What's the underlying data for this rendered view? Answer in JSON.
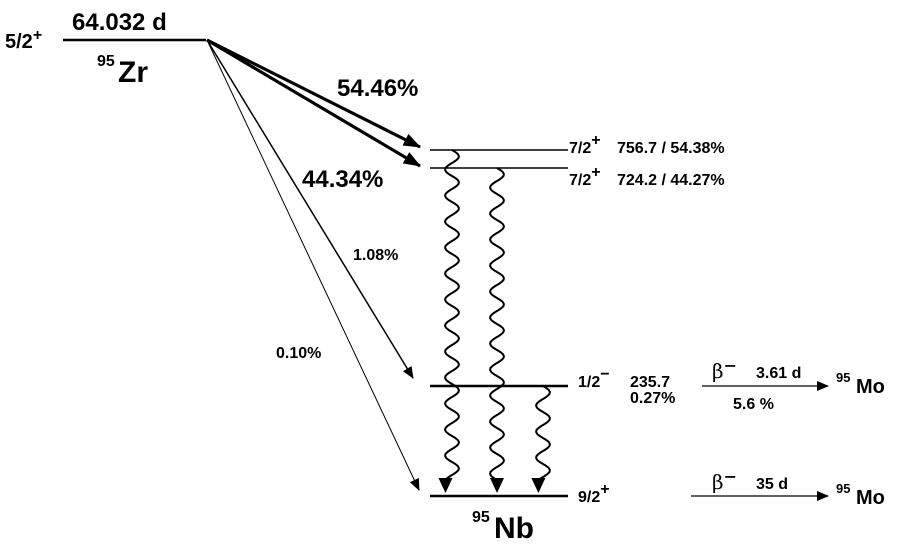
{
  "parent": {
    "spin": "5/2",
    "parity": "+",
    "half_life": "64.032 d",
    "mass_number": "95",
    "element": "Zr"
  },
  "branches": {
    "b1": "54.46%",
    "b2": "44.34%",
    "b3": "1.08%",
    "b4": "0.10%"
  },
  "levels": [
    {
      "spin": "7/2",
      "parity": "+",
      "label": "756.7 / 54.38%"
    },
    {
      "spin": "7/2",
      "parity": "+",
      "label": "724.2 / 44.27%"
    },
    {
      "spin": "1/2",
      "parity": "−",
      "energy": "235.7",
      "intensity": "0.27%"
    },
    {
      "spin": "9/2",
      "parity": "+"
    }
  ],
  "daughter": {
    "mass_number": "95",
    "element": "Nb"
  },
  "decays": [
    {
      "beta": "β",
      "charge": "−",
      "half_life": "3.61 d",
      "branch": "5.6 %",
      "mass_number": "95",
      "product": "Mo"
    },
    {
      "beta": "β",
      "charge": "−",
      "half_life": "35 d",
      "mass_number": "95",
      "product": "Mo"
    }
  ],
  "colors": {
    "ink": "#000000",
    "background": "#ffffff"
  }
}
